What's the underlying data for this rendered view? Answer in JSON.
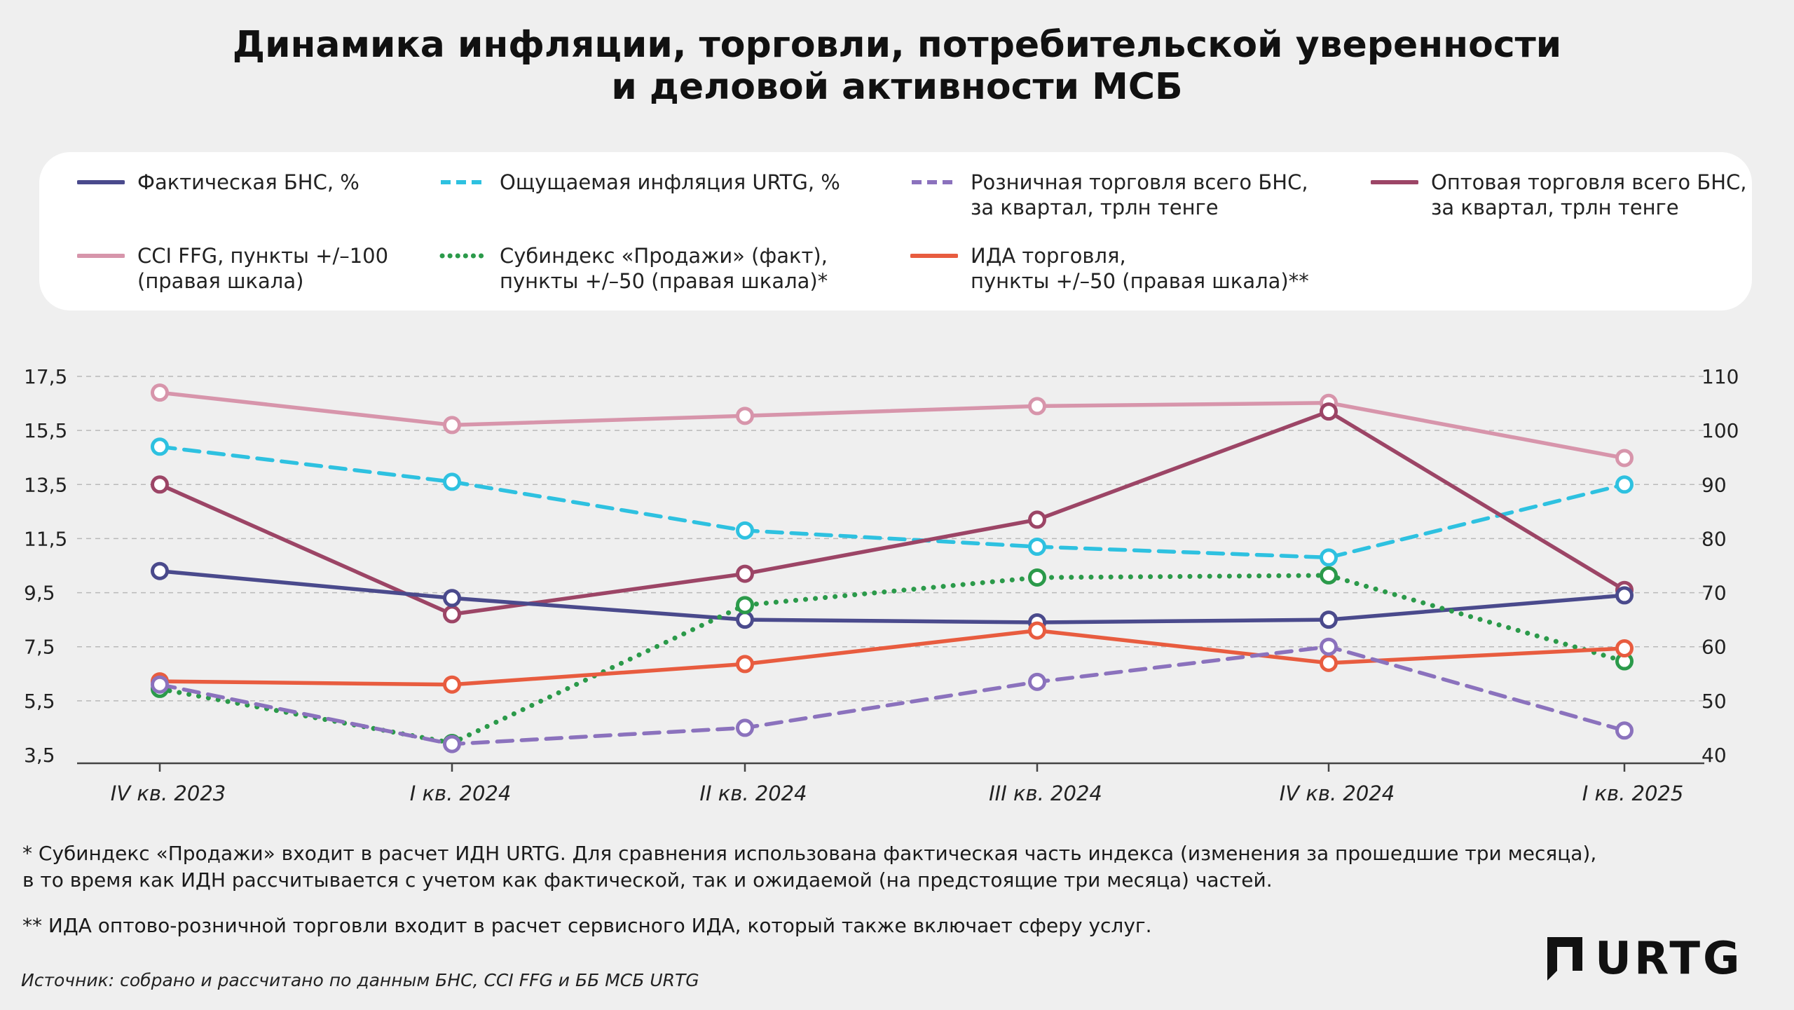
{
  "title": {
    "line1": "Динамика инфляции, торговли, потребительской уверенности",
    "line2": "и деловой активности МСБ"
  },
  "legend": [
    {
      "line1": "Фактическая БНС, %",
      "line2": "",
      "color": "#4a4a8c",
      "dash": "solid"
    },
    {
      "line1": "Ощущаемая инфляция URTG, %",
      "line2": "",
      "color": "#2ec1e0",
      "dash": "dashed"
    },
    {
      "line1": "Розничная торговля всего БНС,",
      "line2": "за квартал, трлн тенге",
      "color": "#8b72bd",
      "dash": "dashed"
    },
    {
      "line1": "Оптовая торговля всего БНС,",
      "line2": "за квартал, трлн тенге",
      "color": "#9c4566",
      "dash": "solid"
    },
    {
      "line1": "CCI FFG, пункты +/–100",
      "line2": "(правая шкала)",
      "color": "#d795ab",
      "dash": "solid"
    },
    {
      "line1": "Субиндекс «Продажи» (факт),",
      "line2": "пункты +/–50 (правая шкала)*",
      "color": "#2b9a4a",
      "dash": "dotted"
    },
    {
      "line1": "ИДА торговля,",
      "line2": "пункты +/–50 (правая шкала)**",
      "color": "#e85c3f",
      "dash": "solid"
    }
  ],
  "chart_data": {
    "type": "line",
    "categories": [
      "IV кв. 2023",
      "I кв. 2024",
      "II кв. 2024",
      "III кв. 2024",
      "IV кв. 2024",
      "I кв. 2025"
    ],
    "y_left": {
      "ticks": [
        "17,5",
        "15,5",
        "13,5",
        "11,5",
        "9,5",
        "7,5",
        "5,5",
        "3,5"
      ],
      "range": [
        3.5,
        17.5
      ]
    },
    "y_right": {
      "ticks": [
        "110",
        "100",
        "90",
        "80",
        "70",
        "60",
        "50",
        "40"
      ],
      "range": [
        40,
        110
      ]
    },
    "grid": true,
    "series": [
      {
        "name": "CCI FFG, пункты +/–100 (правая шкала)",
        "axis": "right",
        "color": "#d795ab",
        "dash": "solid",
        "values": [
          107,
          101,
          102.7,
          104.5,
          105.1,
          94.9
        ]
      },
      {
        "name": "Ощущаемая инфляция URTG, %",
        "axis": "left",
        "color": "#2ec1e0",
        "dash": "dashed",
        "values": [
          14.9,
          13.6,
          11.8,
          11.2,
          10.8,
          13.5
        ]
      },
      {
        "name": "Оптовая торговля всего БНС, за квартал, трлн тенге",
        "axis": "left",
        "color": "#9c4566",
        "dash": "solid",
        "values": [
          13.5,
          8.7,
          10.2,
          12.2,
          16.2,
          9.6
        ]
      },
      {
        "name": "Фактическая БНС, %",
        "axis": "left",
        "color": "#4a4a8c",
        "dash": "solid",
        "values": [
          10.3,
          9.3,
          8.5,
          8.4,
          8.5,
          9.4
        ]
      },
      {
        "name": "Субиндекс «Продажи» (факт), пункты +/–50 (правая шкала)*",
        "axis": "right",
        "color": "#2b9a4a",
        "dash": "dotted",
        "values": [
          52.2,
          42.2,
          67.7,
          72.8,
          73.2,
          57.3
        ]
      },
      {
        "name": "ИДА торговля, пункты +/–50 (правая шкала)**",
        "axis": "right",
        "color": "#e85c3f",
        "dash": "solid",
        "values": [
          53.6,
          53.0,
          56.8,
          63.0,
          57.0,
          59.7
        ]
      },
      {
        "name": "Розничная торговля всего БНС, за квартал, трлн тенге",
        "axis": "left",
        "color": "#8b72bd",
        "dash": "dashed",
        "values": [
          6.1,
          3.9,
          4.5,
          6.2,
          7.5,
          4.4
        ]
      }
    ]
  },
  "notes": {
    "note1_line1": "* Субиндекс «Продажи» входит в расчет ИДН URTG. Для сравнения использована фактическая часть индекса (изменения за прошедшие три месяца),",
    "note1_line2": "в то время как ИДН рассчитывается с учетом как фактической, так и ожидаемой (на предстоящие три месяца) частей.",
    "note2": "** ИДА оптово-розничной торговли входит в расчет сервисного ИДА, который также включает сферу услуг."
  },
  "source": "Источник: собрано и рассчитано по данным БНС, CCI FFG и ББ МСБ URTG",
  "logo": {
    "text": "URTG"
  }
}
